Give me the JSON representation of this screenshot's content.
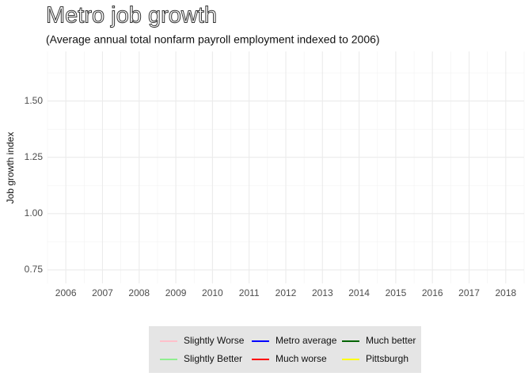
{
  "chart_data": {
    "type": "line",
    "title": "Metro job growth",
    "subtitle": "(Average annual total nonfarm payroll employment indexed to 2006)",
    "y_label": "Job growth index",
    "categories": [
      "2006",
      "2007",
      "2008",
      "2009",
      "2010",
      "2011",
      "2012",
      "2013",
      "2014",
      "2015",
      "2016",
      "2017",
      "2018"
    ],
    "series": [
      {
        "name": "Slightly Worse",
        "color": "#ffc0cb",
        "values": [
          null,
          null,
          null,
          null,
          null,
          null,
          null,
          null,
          null,
          null,
          null,
          null,
          null
        ]
      },
      {
        "name": "Slightly Better",
        "color": "#90ee90",
        "values": [
          null,
          null,
          null,
          null,
          null,
          null,
          null,
          null,
          null,
          null,
          null,
          null,
          null
        ]
      },
      {
        "name": "Metro average",
        "color": "#0000ff",
        "values": [
          null,
          null,
          null,
          null,
          null,
          null,
          null,
          null,
          null,
          null,
          null,
          null,
          null
        ]
      },
      {
        "name": "Much worse",
        "color": "#ff0000",
        "values": [
          null,
          null,
          null,
          null,
          null,
          null,
          null,
          null,
          null,
          null,
          null,
          null,
          null
        ]
      },
      {
        "name": "Much better",
        "color": "#006400",
        "values": [
          null,
          null,
          null,
          null,
          null,
          null,
          null,
          null,
          null,
          null,
          null,
          null,
          null
        ]
      },
      {
        "name": "Pittsburgh",
        "color": "#ffff00",
        "values": [
          null,
          null,
          null,
          null,
          null,
          null,
          null,
          null,
          null,
          null,
          null,
          null,
          null
        ]
      }
    ],
    "ylim": [
      0.69,
      1.72
    ],
    "yticks": [
      0.75,
      {
        "value": 1,
        "label": "1.00"
      },
      1.25,
      {
        "value": 1.5,
        "label": "1.50"
      }
    ],
    "grid": true,
    "legend": "bottom"
  }
}
